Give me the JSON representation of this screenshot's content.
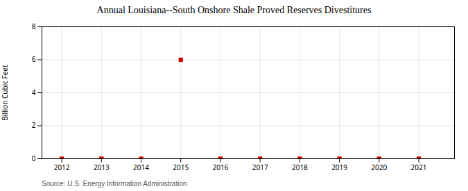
{
  "chart_data": {
    "type": "scatter",
    "title": "Annual Louisiana--South Onshore Shale Proved Reserves Divestitures",
    "y_label": "Billion Cubic Feet",
    "source": "Source: U.S. Energy Information Administration",
    "x": [
      2012,
      2013,
      2014,
      2015,
      2016,
      2017,
      2018,
      2019,
      2020,
      2021
    ],
    "values": [
      0,
      0,
      0,
      6.0,
      0,
      0,
      0,
      0,
      0,
      0
    ],
    "color": "#cc0000",
    "marker": "square",
    "xlim": [
      2011.5,
      2021.9
    ],
    "ylim": [
      0,
      8.0
    ],
    "xticks": [
      2012,
      2013,
      2014,
      2015,
      2016,
      2017,
      2018,
      2019,
      2020,
      2021
    ],
    "yticks": [
      0,
      2,
      4,
      6,
      8
    ],
    "grid": true
  }
}
